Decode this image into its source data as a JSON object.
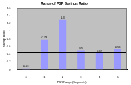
{
  "chart_data": {
    "type": "bar",
    "title": "Range of PSR Savings Ratio",
    "x_label": "PSR Range (Segments)",
    "y_label": "Savings Ratio",
    "categories": [
      "0",
      "1",
      "2",
      "3",
      "4",
      "5"
    ],
    "values": [
      0.03,
      0.78,
      1.3,
      0.5,
      0.42,
      0.53
    ],
    "color": "#9999ff",
    "ylim": [
      0,
      1.6
    ],
    "yticks": [
      0,
      0.2,
      0.4,
      0.6,
      0.8,
      1,
      1.2,
      1.4,
      1.6
    ],
    "reference_lines": [
      0.46,
      0.15
    ],
    "data_labels": true,
    "grid": false
  }
}
